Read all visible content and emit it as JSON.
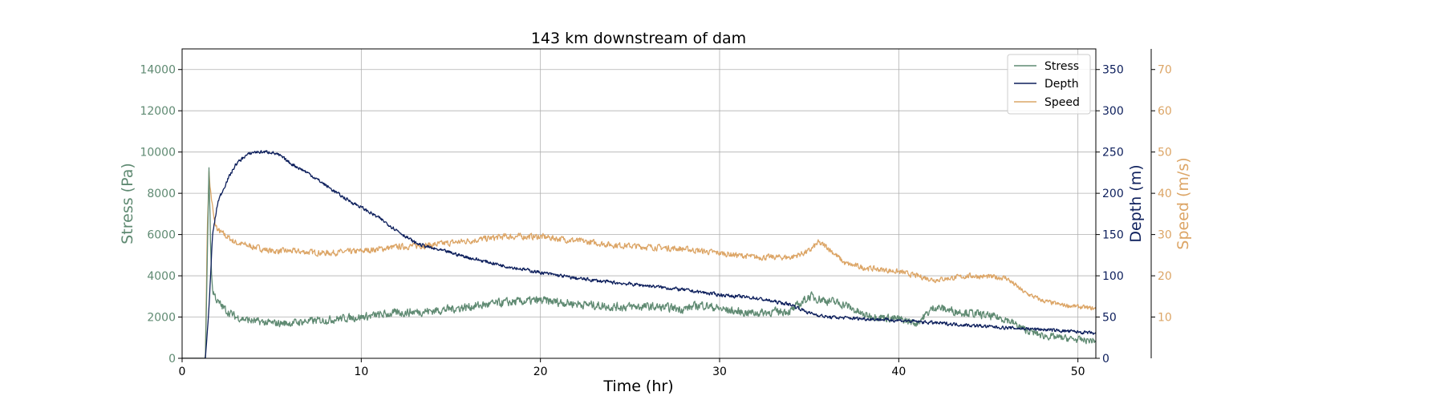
{
  "chart_data": {
    "type": "line",
    "title": "143 km downstream of dam",
    "xlabel": "Time (hr)",
    "xlim": [
      0,
      51
    ],
    "xticks": [
      0,
      10,
      20,
      30,
      40,
      50
    ],
    "grid": true,
    "legend_position": "top-right",
    "axes": {
      "left": {
        "label": "Stress (Pa)",
        "color": "#5f8a72",
        "ylim": [
          0,
          15000
        ],
        "ticks": [
          0,
          2000,
          4000,
          6000,
          8000,
          10000,
          12000,
          14000
        ]
      },
      "right1": {
        "label": "Depth (m)",
        "color": "#0d1f5c",
        "ylim": [
          0,
          375
        ],
        "ticks": [
          0,
          50,
          100,
          150,
          200,
          250,
          300,
          350
        ]
      },
      "right2": {
        "label": "Speed (m/s)",
        "color": "#dca566",
        "ylim": [
          0,
          75
        ],
        "ticks": [
          10,
          20,
          30,
          40,
          50,
          60,
          70
        ]
      }
    },
    "series": [
      {
        "name": "Stress",
        "axis": "left",
        "color": "#5f8a72",
        "noise": 0.08,
        "x": [
          0,
          1.3,
          1.4,
          1.5,
          1.6,
          1.7,
          2,
          2.5,
          3,
          4,
          5,
          6,
          7,
          8,
          9,
          10,
          12,
          14,
          16,
          18,
          20,
          22,
          24,
          26,
          28,
          29,
          30,
          31,
          32,
          34,
          35,
          36,
          37,
          38,
          40,
          41,
          42,
          43,
          44,
          46,
          47,
          48,
          49,
          50,
          51
        ],
        "y": [
          0,
          0,
          4500,
          9400,
          5000,
          3300,
          2700,
          2300,
          2000,
          1800,
          1700,
          1700,
          1800,
          1850,
          1950,
          2000,
          2200,
          2300,
          2500,
          2700,
          2800,
          2650,
          2500,
          2500,
          2400,
          2600,
          2400,
          2250,
          2200,
          2300,
          3000,
          2800,
          2600,
          2100,
          1900,
          1700,
          2500,
          2300,
          2200,
          1900,
          1400,
          1100,
          1000,
          900,
          850
        ]
      },
      {
        "name": "Depth",
        "axis": "right1",
        "color": "#0d1f5c",
        "noise": 0.015,
        "x": [
          0,
          1.3,
          1.5,
          1.7,
          2,
          2.5,
          3,
          3.5,
          4,
          5,
          5.5,
          6,
          7,
          8,
          9,
          10,
          11,
          12,
          13,
          14,
          15,
          16,
          18,
          20,
          22,
          24,
          26,
          28,
          30,
          32,
          34,
          35,
          36,
          38,
          40,
          42,
          44,
          46,
          48,
          50,
          51
        ],
        "y": [
          0,
          0,
          60,
          150,
          190,
          215,
          235,
          245,
          250,
          250,
          245,
          237,
          225,
          210,
          195,
          183,
          170,
          155,
          140,
          133,
          128,
          122,
          112,
          104,
          97,
          92,
          88,
          83,
          77,
          73,
          65,
          55,
          50,
          48,
          46,
          43,
          40,
          37,
          35,
          32,
          30
        ]
      },
      {
        "name": "Speed",
        "axis": "right2",
        "color": "#dca566",
        "noise": 0.04,
        "x": [
          0,
          1.3,
          1.4,
          1.5,
          1.6,
          1.8,
          2,
          3,
          4,
          5,
          6,
          8,
          10,
          12,
          14,
          16,
          18,
          20,
          22,
          24,
          26,
          28,
          30,
          32,
          34,
          35,
          35.5,
          36,
          37,
          38,
          40,
          41,
          42,
          44,
          46,
          47,
          48,
          49,
          50,
          51
        ],
        "y": [
          0,
          0,
          30,
          45,
          40,
          33,
          31,
          28,
          27,
          26,
          26,
          25.5,
          26,
          27,
          27.5,
          28.5,
          29.5,
          29.5,
          28.5,
          27.5,
          27,
          26.5,
          25.5,
          24.5,
          24.5,
          26,
          28,
          27,
          23,
          22,
          21,
          20,
          19,
          20,
          19.5,
          16,
          14,
          13,
          12.5,
          12
        ]
      }
    ]
  }
}
